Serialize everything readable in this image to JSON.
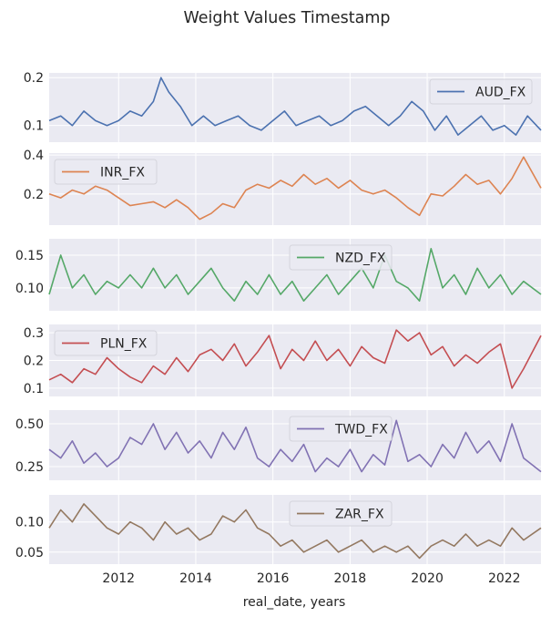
{
  "title": "Weight Values Timestamp",
  "xlabel": "real_date, years",
  "chart_data": {
    "type": "line",
    "title": "Weight Values Timestamp",
    "xlabel": "real_date, years",
    "x_range": [
      2010.2,
      2022.95
    ],
    "x_ticks": [
      2012,
      2014,
      2016,
      2018,
      2020,
      2022
    ],
    "x_tick_labels": [
      "2012",
      "2014",
      "2016",
      "2018",
      "2020",
      "2022"
    ],
    "series": [
      {
        "name": "AUD_FX",
        "color": "#4c72b0",
        "ylim": [
          0.065,
          0.21
        ],
        "yticks": [
          0.1,
          0.2
        ],
        "ytick_labels": [
          "0.1",
          "0.2"
        ],
        "legend": "top-right",
        "x": [
          2010.2,
          2010.5,
          2010.8,
          2011.1,
          2011.4,
          2011.7,
          2012.0,
          2012.3,
          2012.6,
          2012.9,
          2013.1,
          2013.3,
          2013.6,
          2013.9,
          2014.2,
          2014.5,
          2014.8,
          2015.1,
          2015.4,
          2015.7,
          2016.0,
          2016.3,
          2016.6,
          2016.9,
          2017.2,
          2017.5,
          2017.8,
          2018.1,
          2018.4,
          2018.7,
          2019.0,
          2019.3,
          2019.6,
          2019.9,
          2020.2,
          2020.5,
          2020.8,
          2021.1,
          2021.4,
          2021.7,
          2022.0,
          2022.3,
          2022.6,
          2022.95
        ],
        "values": [
          0.11,
          0.12,
          0.1,
          0.13,
          0.11,
          0.1,
          0.11,
          0.13,
          0.12,
          0.15,
          0.2,
          0.17,
          0.14,
          0.1,
          0.12,
          0.1,
          0.11,
          0.12,
          0.1,
          0.09,
          0.11,
          0.13,
          0.1,
          0.11,
          0.12,
          0.1,
          0.11,
          0.13,
          0.14,
          0.12,
          0.1,
          0.12,
          0.15,
          0.13,
          0.09,
          0.12,
          0.08,
          0.1,
          0.12,
          0.09,
          0.1,
          0.08,
          0.12,
          0.09
        ]
      },
      {
        "name": "INR_FX",
        "color": "#dd8452",
        "ylim": [
          0.04,
          0.41
        ],
        "yticks": [
          0.2,
          0.4
        ],
        "ytick_labels": [
          "0.2",
          "0.4"
        ],
        "legend": "top-left",
        "x": [
          2010.2,
          2010.5,
          2010.8,
          2011.1,
          2011.4,
          2011.7,
          2012.0,
          2012.3,
          2012.6,
          2012.9,
          2013.2,
          2013.5,
          2013.8,
          2014.1,
          2014.4,
          2014.7,
          2015.0,
          2015.3,
          2015.6,
          2015.9,
          2016.2,
          2016.5,
          2016.8,
          2017.1,
          2017.4,
          2017.7,
          2018.0,
          2018.3,
          2018.6,
          2018.9,
          2019.2,
          2019.5,
          2019.8,
          2020.1,
          2020.4,
          2020.7,
          2021.0,
          2021.3,
          2021.6,
          2021.9,
          2022.2,
          2022.5,
          2022.95
        ],
        "values": [
          0.2,
          0.18,
          0.22,
          0.2,
          0.24,
          0.22,
          0.18,
          0.14,
          0.15,
          0.16,
          0.13,
          0.17,
          0.13,
          0.07,
          0.1,
          0.15,
          0.13,
          0.22,
          0.25,
          0.23,
          0.27,
          0.24,
          0.3,
          0.25,
          0.28,
          0.23,
          0.27,
          0.22,
          0.2,
          0.22,
          0.18,
          0.13,
          0.09,
          0.2,
          0.19,
          0.24,
          0.3,
          0.25,
          0.27,
          0.2,
          0.28,
          0.39,
          0.23
        ]
      },
      {
        "name": "NZD_FX",
        "color": "#55a868",
        "ylim": [
          0.065,
          0.175
        ],
        "yticks": [
          0.1,
          0.15
        ],
        "ytick_labels": [
          "0.10",
          "0.15"
        ],
        "legend": "top-center",
        "x": [
          2010.2,
          2010.5,
          2010.8,
          2011.1,
          2011.4,
          2011.7,
          2012.0,
          2012.3,
          2012.6,
          2012.9,
          2013.2,
          2013.5,
          2013.8,
          2014.1,
          2014.4,
          2014.7,
          2015.0,
          2015.3,
          2015.6,
          2015.9,
          2016.2,
          2016.5,
          2016.8,
          2017.1,
          2017.4,
          2017.7,
          2018.0,
          2018.3,
          2018.6,
          2018.9,
          2019.2,
          2019.5,
          2019.8,
          2020.1,
          2020.4,
          2020.7,
          2021.0,
          2021.3,
          2021.6,
          2021.9,
          2022.2,
          2022.5,
          2022.95
        ],
        "values": [
          0.09,
          0.15,
          0.1,
          0.12,
          0.09,
          0.11,
          0.1,
          0.12,
          0.1,
          0.13,
          0.1,
          0.12,
          0.09,
          0.11,
          0.13,
          0.1,
          0.08,
          0.11,
          0.09,
          0.12,
          0.09,
          0.11,
          0.08,
          0.1,
          0.12,
          0.09,
          0.11,
          0.13,
          0.1,
          0.15,
          0.11,
          0.1,
          0.08,
          0.16,
          0.1,
          0.12,
          0.09,
          0.13,
          0.1,
          0.12,
          0.09,
          0.11,
          0.09
        ]
      },
      {
        "name": "PLN_FX",
        "color": "#c44e52",
        "ylim": [
          0.07,
          0.33
        ],
        "yticks": [
          0.1,
          0.2,
          0.3
        ],
        "ytick_labels": [
          "0.1",
          "0.2",
          "0.3"
        ],
        "legend": "top-left",
        "x": [
          2010.2,
          2010.5,
          2010.8,
          2011.1,
          2011.4,
          2011.7,
          2012.0,
          2012.3,
          2012.6,
          2012.9,
          2013.2,
          2013.5,
          2013.8,
          2014.1,
          2014.4,
          2014.7,
          2015.0,
          2015.3,
          2015.6,
          2015.9,
          2016.2,
          2016.5,
          2016.8,
          2017.1,
          2017.4,
          2017.7,
          2018.0,
          2018.3,
          2018.6,
          2018.9,
          2019.2,
          2019.5,
          2019.8,
          2020.1,
          2020.4,
          2020.7,
          2021.0,
          2021.3,
          2021.6,
          2021.9,
          2022.2,
          2022.5,
          2022.95
        ],
        "values": [
          0.13,
          0.15,
          0.12,
          0.17,
          0.15,
          0.21,
          0.17,
          0.14,
          0.12,
          0.18,
          0.15,
          0.21,
          0.16,
          0.22,
          0.24,
          0.2,
          0.26,
          0.18,
          0.23,
          0.29,
          0.17,
          0.24,
          0.2,
          0.27,
          0.2,
          0.24,
          0.18,
          0.25,
          0.21,
          0.19,
          0.31,
          0.27,
          0.3,
          0.22,
          0.25,
          0.18,
          0.22,
          0.19,
          0.23,
          0.26,
          0.1,
          0.17,
          0.29
        ]
      },
      {
        "name": "TWD_FX",
        "color": "#8172b3",
        "ylim": [
          0.17,
          0.58
        ],
        "yticks": [
          0.25,
          0.5
        ],
        "ytick_labels": [
          "0.25",
          "0.50"
        ],
        "legend": "top-center",
        "x": [
          2010.2,
          2010.5,
          2010.8,
          2011.1,
          2011.4,
          2011.7,
          2012.0,
          2012.3,
          2012.6,
          2012.9,
          2013.2,
          2013.5,
          2013.8,
          2014.1,
          2014.4,
          2014.7,
          2015.0,
          2015.3,
          2015.6,
          2015.9,
          2016.2,
          2016.5,
          2016.8,
          2017.1,
          2017.4,
          2017.7,
          2018.0,
          2018.3,
          2018.6,
          2018.9,
          2019.2,
          2019.5,
          2019.8,
          2020.1,
          2020.4,
          2020.7,
          2021.0,
          2021.3,
          2021.6,
          2021.9,
          2022.2,
          2022.5,
          2022.95
        ],
        "values": [
          0.35,
          0.3,
          0.4,
          0.27,
          0.33,
          0.25,
          0.3,
          0.42,
          0.38,
          0.5,
          0.35,
          0.45,
          0.33,
          0.4,
          0.3,
          0.45,
          0.35,
          0.48,
          0.3,
          0.25,
          0.35,
          0.28,
          0.38,
          0.22,
          0.3,
          0.25,
          0.35,
          0.22,
          0.32,
          0.26,
          0.52,
          0.28,
          0.32,
          0.25,
          0.38,
          0.3,
          0.45,
          0.33,
          0.4,
          0.28,
          0.5,
          0.3,
          0.22
        ]
      },
      {
        "name": "ZAR_FX",
        "color": "#937860",
        "ylim": [
          0.03,
          0.145
        ],
        "yticks": [
          0.05,
          0.1
        ],
        "ytick_labels": [
          "0.05",
          "0.10"
        ],
        "legend": "top-center",
        "x": [
          2010.2,
          2010.5,
          2010.8,
          2011.1,
          2011.4,
          2011.7,
          2012.0,
          2012.3,
          2012.6,
          2012.9,
          2013.2,
          2013.5,
          2013.8,
          2014.1,
          2014.4,
          2014.7,
          2015.0,
          2015.3,
          2015.6,
          2015.9,
          2016.2,
          2016.5,
          2016.8,
          2017.1,
          2017.4,
          2017.7,
          2018.0,
          2018.3,
          2018.6,
          2018.9,
          2019.2,
          2019.5,
          2019.8,
          2020.1,
          2020.4,
          2020.7,
          2021.0,
          2021.3,
          2021.6,
          2021.9,
          2022.2,
          2022.5,
          2022.95
        ],
        "values": [
          0.09,
          0.12,
          0.1,
          0.13,
          0.11,
          0.09,
          0.08,
          0.1,
          0.09,
          0.07,
          0.1,
          0.08,
          0.09,
          0.07,
          0.08,
          0.11,
          0.1,
          0.12,
          0.09,
          0.08,
          0.06,
          0.07,
          0.05,
          0.06,
          0.07,
          0.05,
          0.06,
          0.07,
          0.05,
          0.06,
          0.05,
          0.06,
          0.04,
          0.06,
          0.07,
          0.06,
          0.08,
          0.06,
          0.07,
          0.06,
          0.09,
          0.07,
          0.09
        ]
      }
    ]
  }
}
